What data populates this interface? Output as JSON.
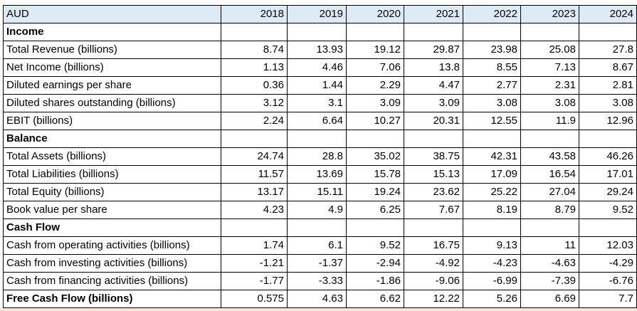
{
  "table": {
    "header": [
      "AUD",
      "2018",
      "2019",
      "2020",
      "2021",
      "2022",
      "2023",
      "2024"
    ],
    "sections": [
      {
        "title": "Income",
        "rows": [
          {
            "label": "Total Revenue (billions)",
            "values": [
              8.74,
              13.93,
              19.12,
              29.87,
              23.98,
              25.08,
              27.8
            ]
          },
          {
            "label": "Net Income (billions)",
            "values": [
              1.13,
              4.46,
              7.06,
              13.8,
              8.55,
              7.13,
              8.67
            ]
          },
          {
            "label": "Diluted earnings per share",
            "values": [
              0.36,
              1.44,
              2.29,
              4.47,
              2.77,
              2.31,
              2.81
            ]
          },
          {
            "label": "Diluted shares outstanding (billions)",
            "values": [
              3.12,
              3.1,
              3.09,
              3.09,
              3.08,
              3.08,
              3.08
            ]
          },
          {
            "label": "EBIT (billions)",
            "values": [
              2.24,
              6.64,
              10.27,
              20.31,
              12.55,
              11.9,
              12.96
            ]
          }
        ]
      },
      {
        "title": "Balance",
        "rows": [
          {
            "label": "Total Assets (billions)",
            "values": [
              24.74,
              28.8,
              35.02,
              38.75,
              42.31,
              43.58,
              46.26
            ]
          },
          {
            "label": "Total Liabilities (billions)",
            "values": [
              11.57,
              13.69,
              15.78,
              15.13,
              17.09,
              16.54,
              17.01
            ]
          },
          {
            "label": "Total Equity (billions)",
            "values": [
              13.17,
              15.11,
              19.24,
              23.62,
              25.22,
              27.04,
              29.24
            ]
          },
          {
            "label": "Book value per share",
            "values": [
              4.23,
              4.9,
              6.25,
              7.67,
              8.19,
              8.79,
              9.52
            ]
          }
        ]
      },
      {
        "title": "Cash Flow",
        "rows": [
          {
            "label": "Cash from operating activities (billions)",
            "values": [
              1.74,
              6.1,
              9.52,
              16.75,
              9.13,
              11,
              12.03
            ]
          },
          {
            "label": "Cash from investing activities (billions)",
            "values": [
              -1.21,
              -1.37,
              -2.94,
              -4.92,
              -4.23,
              -4.63,
              -4.29
            ]
          },
          {
            "label": "Cash from financing activities (billions)",
            "values": [
              -1.77,
              -3.33,
              -1.86,
              -9.06,
              -6.99,
              -7.39,
              -6.76
            ]
          },
          {
            "label": "Free Cash Flow (billions)",
            "values": [
              0.575,
              4.63,
              6.62,
              12.22,
              5.26,
              6.69,
              7.7
            ]
          }
        ]
      }
    ]
  }
}
